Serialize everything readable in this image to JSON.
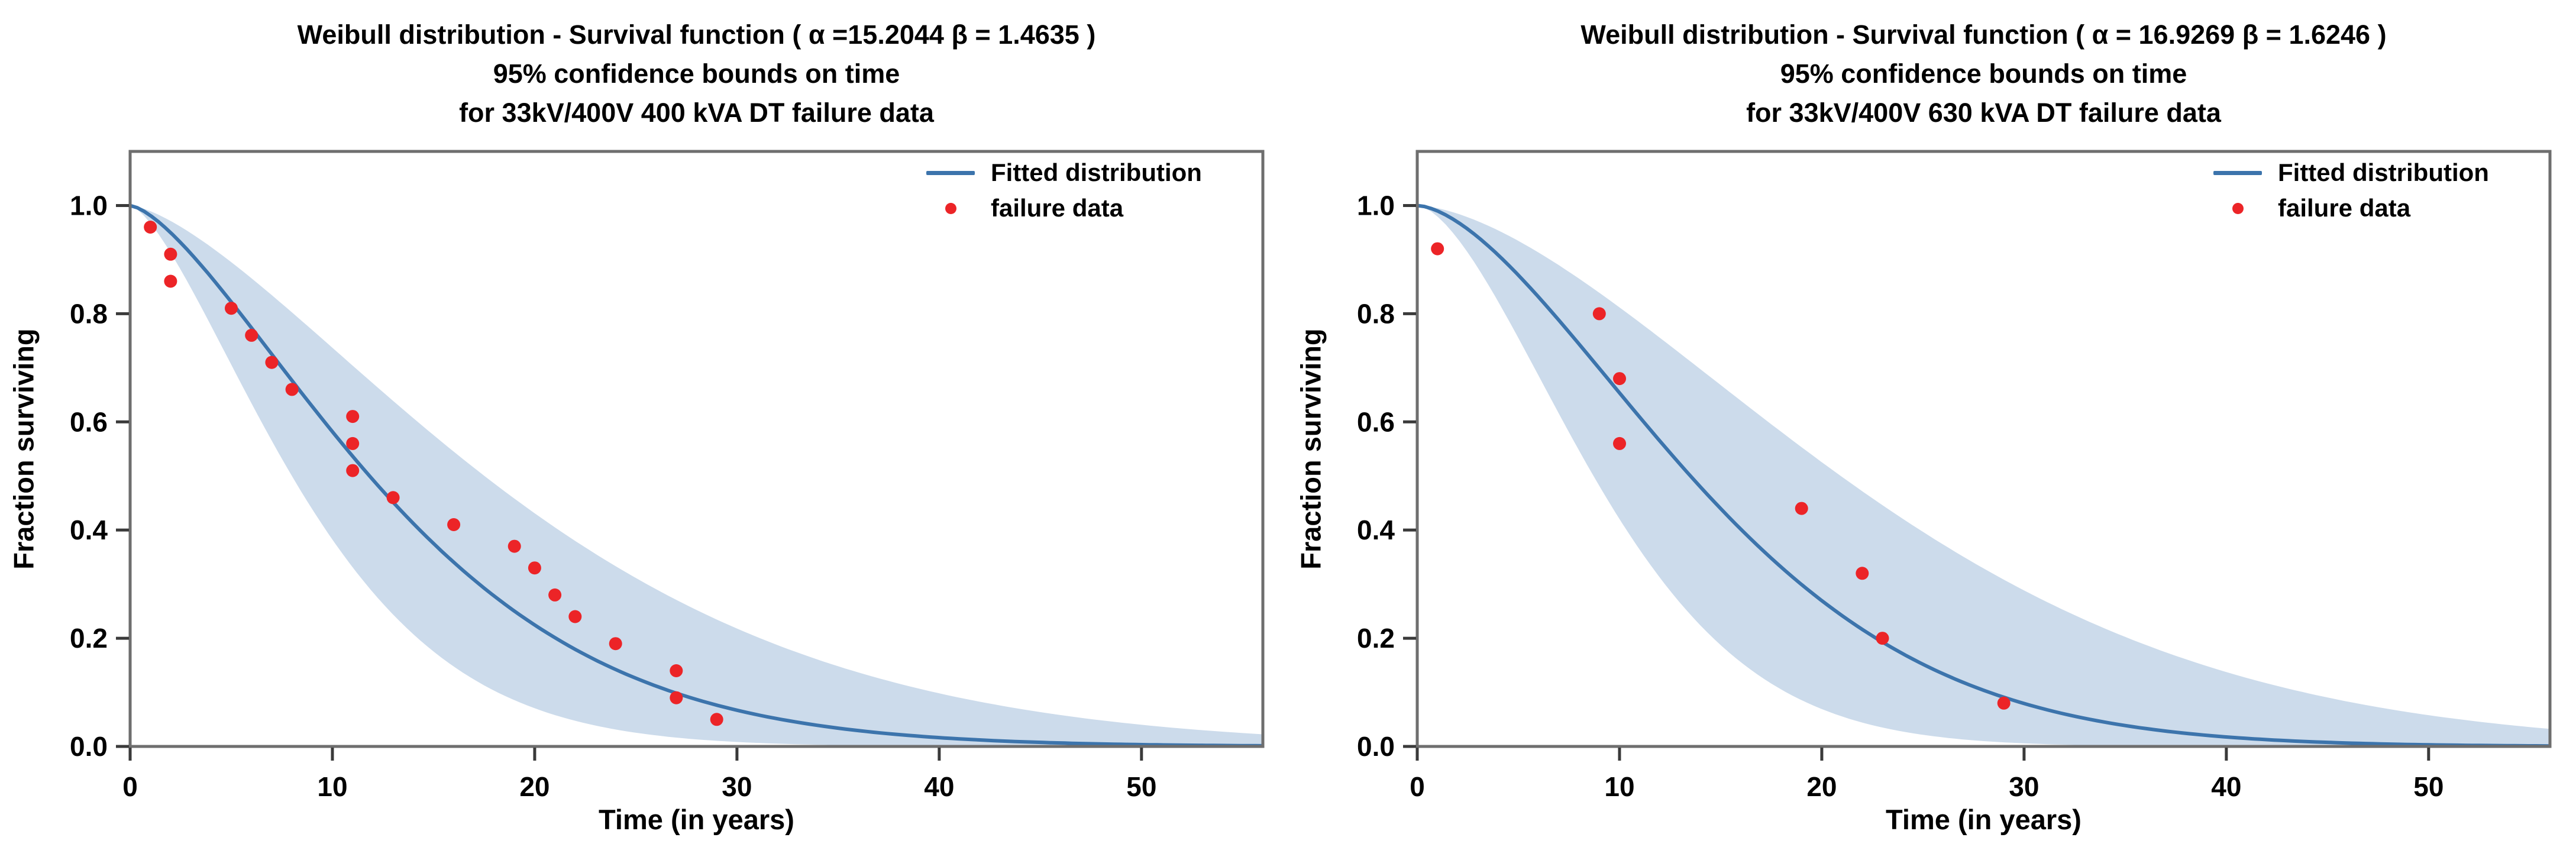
{
  "figure": {
    "background": "#ffffff"
  },
  "chart_data": [
    {
      "type": "line",
      "title_line1": "Weibull distribution - Survival function ( α =15.2044   β = 1.4635 )",
      "title_line2": "95% confidence bounds on time",
      "title_line3": "for 33kV/400V 400 kVA  DT failure data",
      "xlabel": "Time (in years)",
      "ylabel": "Fraction surviving",
      "legend_fitted": "Fitted distribution",
      "legend_failure": "failure data",
      "legend_position": "upper right",
      "grid": false,
      "weibull_alpha": 15.2044,
      "weibull_beta": 1.4635,
      "band_time_factor": 1.48,
      "xlim": [
        0,
        56
      ],
      "ylim": [
        0,
        1.1
      ],
      "xticks": [
        0,
        10,
        20,
        30,
        40,
        50
      ],
      "yticks": [
        0,
        0.2,
        0.4,
        0.6,
        0.8,
        1
      ],
      "line_color": "#3c74ac",
      "band_color": "#ccdbeb",
      "marker_color": "#ec2427",
      "scatter_x": [
        1,
        2,
        2,
        5,
        6,
        7,
        8,
        11,
        11,
        11,
        13,
        16,
        19,
        20,
        21,
        22,
        24,
        27,
        27,
        29
      ],
      "scatter_y": [
        0.96,
        0.91,
        0.86,
        0.81,
        0.76,
        0.71,
        0.66,
        0.61,
        0.56,
        0.51,
        0.46,
        0.41,
        0.37,
        0.33,
        0.28,
        0.24,
        0.19,
        0.14,
        0.09,
        0.05
      ]
    },
    {
      "type": "line",
      "title_line1": "Weibull distribution - Survival function ( α = 16.9269   β = 1.6246 )",
      "title_line2": "95% confidence bounds on time",
      "title_line3": "for 33kV/400V 630 kVA  DT failure data",
      "xlabel": "Time (in years)",
      "ylabel": "Fraction surviving",
      "legend_fitted": "Fitted distribution",
      "legend_failure": "failure data",
      "legend_position": "upper right",
      "grid": false,
      "weibull_alpha": 16.9269,
      "weibull_beta": 1.6246,
      "band_time_factor": 1.55,
      "xlim": [
        0,
        56
      ],
      "ylim": [
        0,
        1.1
      ],
      "xticks": [
        0,
        10,
        20,
        30,
        40,
        50
      ],
      "yticks": [
        0,
        0.2,
        0.4,
        0.6,
        0.8,
        1
      ],
      "line_color": "#3c74ac",
      "band_color": "#ccdbeb",
      "marker_color": "#ec2427",
      "scatter_x": [
        1,
        9,
        10,
        10,
        19,
        22,
        23,
        29
      ],
      "scatter_y": [
        0.92,
        0.8,
        0.68,
        0.56,
        0.44,
        0.32,
        0.2,
        0.08
      ]
    }
  ]
}
